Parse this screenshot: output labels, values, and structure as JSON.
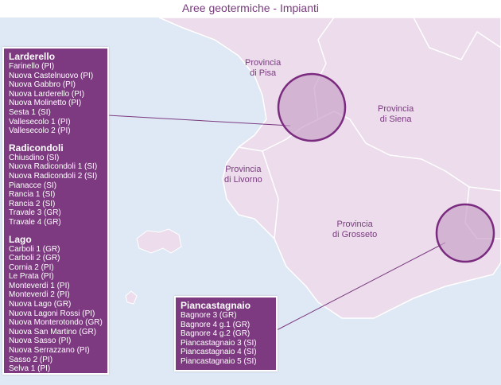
{
  "title": "Aree geotermiche - Impianti",
  "colors": {
    "panel": "#7d3a80",
    "land": "#ecdcec",
    "sea": "#dfe9f6",
    "accent": "#7a3a7f"
  },
  "provinces_lines": [
    [
      "Provincia",
      "di Pisa"
    ],
    [
      "Provincia",
      "di Siena"
    ],
    [
      "Provincia",
      "di Livorno"
    ],
    [
      "Provincia",
      "di Grosseto"
    ]
  ],
  "groups": [
    {
      "name": "Larderello",
      "items": [
        "Farinello (PI)",
        "Nuova Castelnuovo (PI)",
        "Nuova Gabbro (PI)",
        "Nuova Larderello (PI)",
        "Nuova Molinetto (PI)",
        "Sesta 1 (SI)",
        "Vallesecolo 1 (PI)",
        "Vallesecolo 2 (PI)"
      ]
    },
    {
      "name": "Radicondoli",
      "items": [
        "Chiusdino (SI)",
        "Nuova Radicondoli 1 (SI)",
        "Nuova Radicondoli 2 (SI)",
        "Pianacce (SI)",
        "Rancia 1 (SI)",
        "Rancia 2 (SI)",
        "Travale 3 (GR)",
        "Travale 4 (GR)"
      ]
    },
    {
      "name": "Lago",
      "items": [
        "Carboli 1 (GR)",
        "Carboli 2 (GR)",
        "Cornia 2 (PI)",
        "Le Prata (PI)",
        "Monteverdi 1 (PI)",
        "Monteverdi 2 (PI)",
        "Nuova Lago (GR)",
        "Nuova Lagoni Rossi (PI)",
        "Nuova Monterotondo (GR)",
        "Nuova San Martino (GR)",
        "Nuova Sasso (PI)",
        "Nuova Serrazzano (PI)",
        "Sasso 2 (PI)",
        "Selva 1 (PI)"
      ]
    },
    {
      "name": "Piancastagnaio",
      "items": [
        "Bagnore 3 (GR)",
        "Bagnore 4 g.1 (GR)",
        "Bagnore 4 g.2 (GR)",
        "Piancastagnaio 3 (SI)",
        "Piancastagnaio 4 (SI)",
        "Piancastagnaio 5 (SI)"
      ]
    }
  ]
}
